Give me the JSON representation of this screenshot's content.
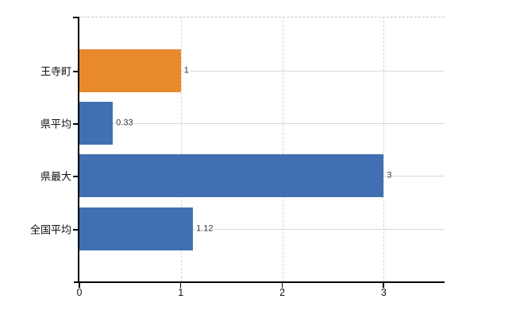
{
  "chart_data": {
    "type": "bar",
    "orientation": "horizontal",
    "title": "",
    "categories": [
      "王寺町",
      "県平均",
      "県最大",
      "全国平均"
    ],
    "values": [
      1,
      0.33,
      3,
      1.12
    ],
    "value_labels": [
      "1",
      "0.33",
      "3",
      "1.12"
    ],
    "bar_colors": [
      "#E8892E",
      "#4070B1",
      "#4070B1",
      "#4070B1"
    ],
    "x_ticks": [
      0,
      1,
      2,
      3
    ],
    "x_tick_labels": [
      "0",
      "1",
      "2",
      "3"
    ],
    "xlim": [
      0,
      3.6
    ],
    "ylabel": "",
    "xlabel": "",
    "legend": "none",
    "grid": {
      "vertical": "dashed",
      "horizontal": "solid",
      "top_border": "dashed"
    }
  },
  "colors": {
    "bar_blue": "#4070B1",
    "bar_orange": "#E8892E",
    "axis": "#000000",
    "grid_vertical": "#d4d4d4",
    "grid_horizontal": "#d3d9d3",
    "grid_top_border": "#c9c9c9",
    "category_text": "#111111",
    "value_text": "#333333",
    "background": "#ffffff"
  }
}
